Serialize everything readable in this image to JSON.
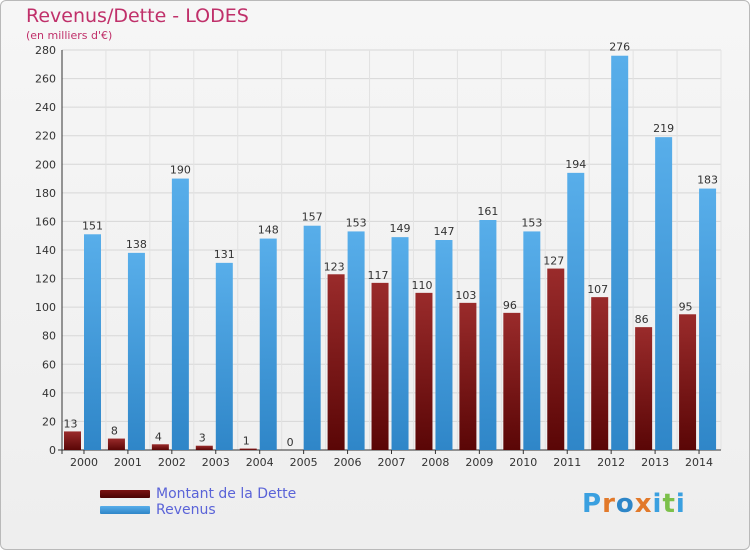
{
  "header": {
    "title": "Revenus/Dette - LODES",
    "subtitle": "(en milliers d'€)"
  },
  "colors": {
    "dette": "#8a1a1a",
    "revenus": "#3d9be0",
    "title": "#c0306a",
    "legend_text": "#5a63d8"
  },
  "legend": [
    {
      "label": "Montant de la Dette",
      "color": "#6b0a0a"
    },
    {
      "label": "Revenus",
      "color": "#3d9be0"
    }
  ],
  "logo": {
    "text": "Proxiti",
    "letters": [
      "P",
      "r",
      "o",
      "x",
      "i",
      "t",
      "i"
    ],
    "letter_colors": [
      "#3aa0e0",
      "#e2792a",
      "#2e86c8",
      "#e2792a",
      "#3aa0e0",
      "#7cc04a",
      "#3aa0e0"
    ]
  },
  "chart_data": {
    "type": "bar",
    "title": "Revenus/Dette - LODES",
    "subtitle": "(en milliers d'€)",
    "categories": [
      "2000",
      "2001",
      "2002",
      "2003",
      "2004",
      "2005",
      "2006",
      "2007",
      "2008",
      "2009",
      "2010",
      "2011",
      "2012",
      "2013",
      "2014"
    ],
    "series": [
      {
        "name": "Montant de la Dette",
        "values": [
          13,
          8,
          4,
          3,
          1,
          0,
          123,
          117,
          110,
          103,
          96,
          127,
          107,
          86,
          95
        ]
      },
      {
        "name": "Revenus",
        "values": [
          151,
          138,
          190,
          131,
          148,
          157,
          153,
          149,
          147,
          161,
          153,
          194,
          276,
          219,
          183
        ]
      }
    ],
    "yticks": [
      0,
      20,
      40,
      60,
      80,
      100,
      120,
      140,
      160,
      180,
      200,
      220,
      240,
      260,
      280
    ],
    "ylim": [
      0,
      280
    ],
    "grid": true,
    "legend_position": "bottom-left"
  }
}
